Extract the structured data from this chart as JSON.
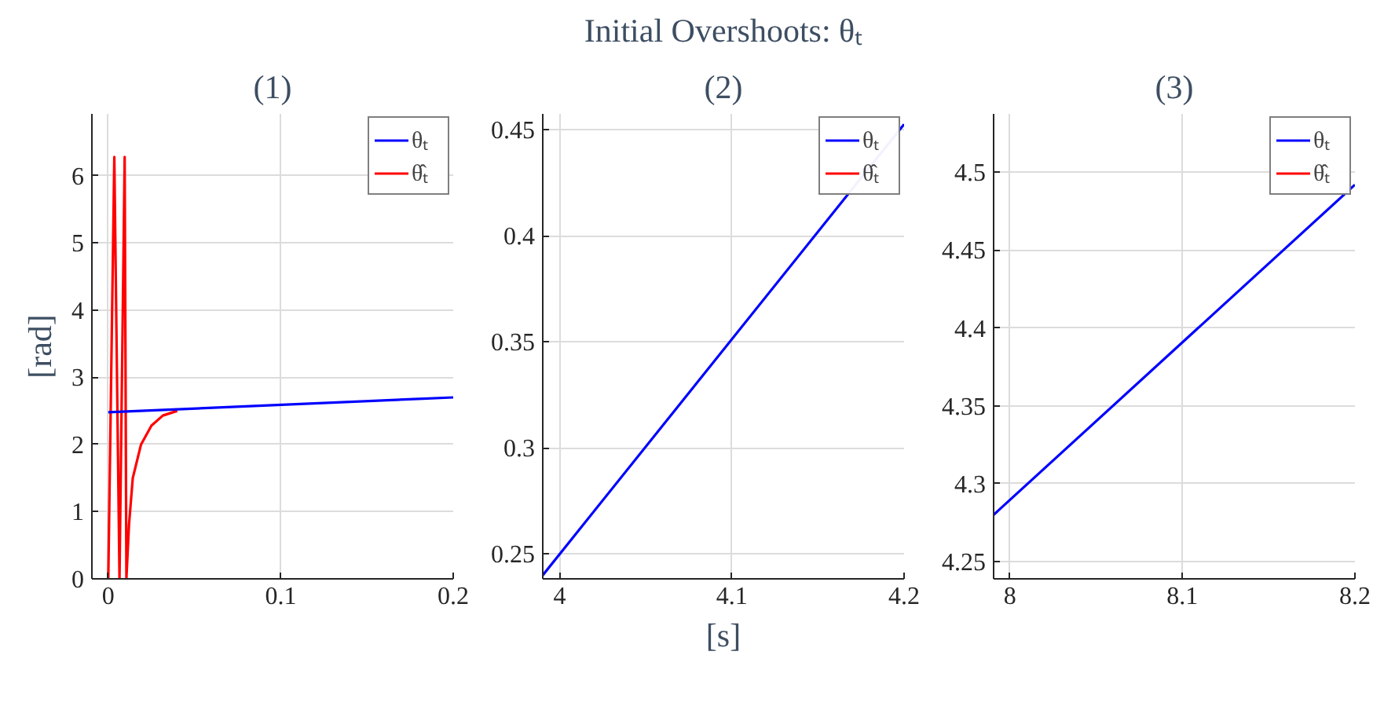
{
  "chart_data": [
    {
      "type": "line",
      "subtitle": "(1)",
      "ylabel": "[rad]",
      "xlim": [
        -0.0095,
        0.2
      ],
      "ylim": [
        0,
        6.92
      ],
      "xticks": [
        0,
        0.1,
        0.2
      ],
      "yticks": [
        0,
        1,
        2,
        3,
        4,
        5,
        6
      ],
      "grid": true,
      "legend": "top right",
      "line_style": "solid",
      "series": [
        {
          "name": "θₜ",
          "color": "#0000ff",
          "x": [
            0,
            0.2
          ],
          "values": [
            2.48,
            2.7
          ]
        },
        {
          "name": "θ̂ₜ",
          "color": "#ff0000",
          "x": [
            0,
            0.0035,
            0.0065,
            0.0095,
            0.0105,
            0.012,
            0.0142,
            0.019,
            0.025,
            0.0316,
            0.04
          ],
          "values": [
            0,
            6.28,
            0,
            6.28,
            0,
            0.8,
            1.5,
            2.0,
            2.28,
            2.43,
            2.5
          ]
        }
      ]
    },
    {
      "type": "line",
      "title": "Initial Overshoots: θₜ",
      "subtitle": "(2)",
      "xlabel": "[s]",
      "xlim": [
        3.9902,
        4.2
      ],
      "ylim": [
        0.2383,
        0.4574
      ],
      "xticks": [
        4,
        4.1,
        4.2
      ],
      "yticks": [
        0.25,
        0.3,
        0.35,
        0.4,
        0.45
      ],
      "grid": true,
      "legend": "top right",
      "line_style": "solid",
      "series": [
        {
          "name": "θₜ",
          "color": "#0000ff",
          "x": [
            3.9902,
            4.2
          ],
          "values": [
            0.24,
            0.4525
          ]
        },
        {
          "name": "θ̂ₜ",
          "color": "#ff0000",
          "values": [
            null,
            null
          ]
        }
      ]
    },
    {
      "type": "line",
      "subtitle": "(3)",
      "xlim": [
        7.9906,
        8.2
      ],
      "ylim": [
        4.2389,
        4.5375
      ],
      "xticks": [
        8,
        8.1,
        8.2
      ],
      "yticks": [
        4.25,
        4.3,
        4.35,
        4.4,
        4.45,
        4.5
      ],
      "grid": true,
      "legend": "top right",
      "line_style": "solid",
      "series": [
        {
          "name": "θₜ",
          "color": "#0000ff",
          "x": [
            7.9906,
            8.2
          ],
          "values": [
            4.28,
            4.492
          ]
        },
        {
          "name": "θ̂ₜ",
          "color": "#ff0000",
          "values": [
            null,
            null
          ]
        }
      ]
    }
  ]
}
